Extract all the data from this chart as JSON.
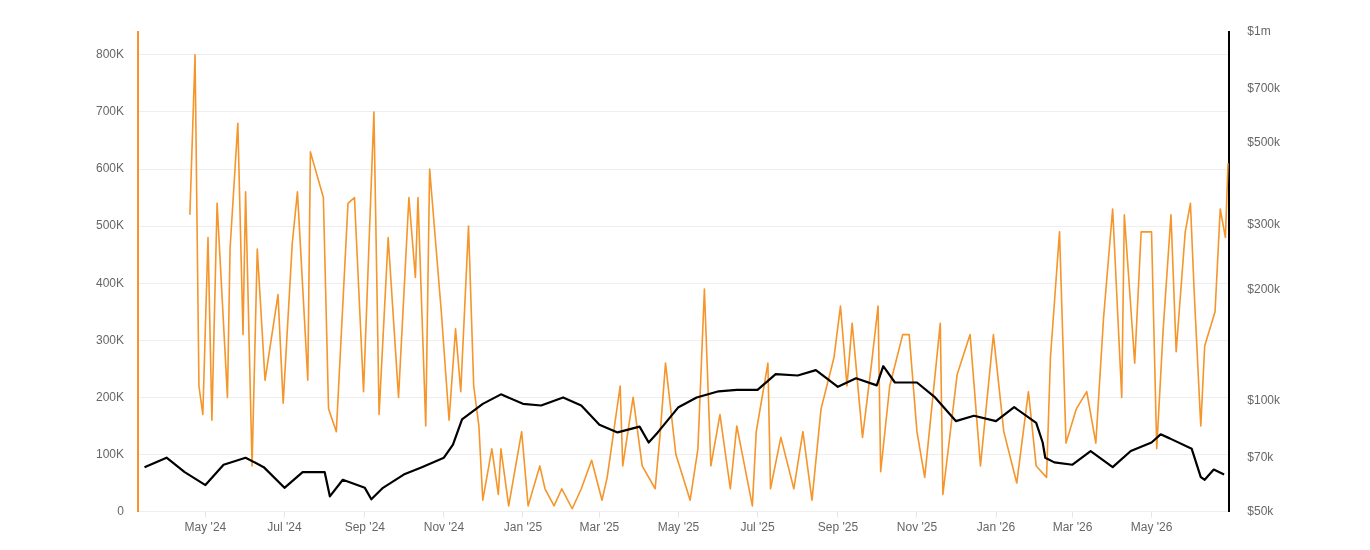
{
  "chart_data": {
    "type": "line",
    "log": "y2",
    "grid": "y",
    "marker": "none",
    "line_style": "solid",
    "xlim": [
      "2024-03-10",
      "2026-06-30"
    ],
    "xticks": [
      {
        "value": "2024-05-01",
        "label": "May '24"
      },
      {
        "value": "2024-07-01",
        "label": "Jul '24"
      },
      {
        "value": "2024-09-01",
        "label": "Sep '24"
      },
      {
        "value": "2024-11-01",
        "label": "Nov '24"
      },
      {
        "value": "2025-01-01",
        "label": "Jan '25"
      },
      {
        "value": "2025-03-01",
        "label": "Mar '25"
      },
      {
        "value": "2025-05-01",
        "label": "May '25"
      },
      {
        "value": "2025-07-01",
        "label": "Jul '25"
      },
      {
        "value": "2025-09-01",
        "label": "Sep '25"
      },
      {
        "value": "2025-11-01",
        "label": "Nov '25"
      },
      {
        "value": "2026-01-01",
        "label": "Jan '26"
      },
      {
        "value": "2026-03-01",
        "label": "Mar '26"
      },
      {
        "value": "2026-05-01",
        "label": "May '26"
      }
    ],
    "ylim": [
      0,
      840000
    ],
    "yticks": [
      0,
      {
        "value": 100000,
        "label": "100K"
      },
      {
        "value": 200000,
        "label": "200K"
      },
      {
        "value": 300000,
        "label": "300K"
      },
      {
        "value": 400000,
        "label": "400K"
      },
      {
        "value": 500000,
        "label": "500K"
      },
      {
        "value": 600000,
        "label": "600K"
      },
      {
        "value": 700000,
        "label": "700K"
      },
      {
        "value": 800000,
        "label": "800K"
      }
    ],
    "y2lim": [
      50000,
      1000000
    ],
    "y2ticks": [
      {
        "value": 50000,
        "label": "$50k"
      },
      {
        "value": 70000,
        "label": "$70k"
      },
      {
        "value": 100000,
        "label": "$100k"
      },
      {
        "value": 200000,
        "label": "$200k"
      },
      {
        "value": 300000,
        "label": "$300k"
      },
      {
        "value": 500000,
        "label": "$500k"
      },
      {
        "value": 700000,
        "label": "$700k"
      },
      {
        "value": 1000000,
        "label": "$1m"
      }
    ],
    "series": [
      {
        "color": "#f5952a",
        "axis": "y",
        "x": [
          "2024-04-19",
          "2024-04-23",
          "2024-04-26",
          "2024-04-29",
          "2024-05-03",
          "2024-05-06",
          "2024-05-10",
          "2024-05-18",
          "2024-05-20",
          "2024-05-26",
          "2024-05-30",
          "2024-06-01",
          "2024-06-06",
          "2024-06-10",
          "2024-06-16",
          "2024-06-26",
          "2024-06-30",
          "2024-07-07",
          "2024-07-11",
          "2024-07-19",
          "2024-07-21",
          "2024-07-31",
          "2024-08-04",
          "2024-08-10",
          "2024-08-19",
          "2024-08-24",
          "2024-08-31",
          "2024-09-08",
          "2024-09-12",
          "2024-09-19",
          "2024-09-27",
          "2024-10-05",
          "2024-10-10",
          "2024-10-12",
          "2024-10-18",
          "2024-10-21",
          "2024-10-30",
          "2024-11-05",
          "2024-11-10",
          "2024-11-14",
          "2024-11-20",
          "2024-11-24",
          "2024-11-28",
          "2024-12-01",
          "2024-12-08",
          "2024-12-13",
          "2024-12-15",
          "2024-12-21",
          "2024-12-31",
          "2025-01-05",
          "2025-01-14",
          "2025-01-18",
          "2025-01-25",
          "2025-01-31",
          "2025-02-08",
          "2025-02-15",
          "2025-02-23",
          "2025-03-03",
          "2025-03-07",
          "2025-03-17",
          "2025-03-19",
          "2025-03-27",
          "2025-04-03",
          "2025-04-13",
          "2025-04-17",
          "2025-04-21",
          "2025-04-29",
          "2025-05-10",
          "2025-05-16",
          "2025-05-21",
          "2025-05-26",
          "2025-06-02",
          "2025-06-10",
          "2025-06-15",
          "2025-06-27",
          "2025-06-30",
          "2025-07-09",
          "2025-07-11",
          "2025-07-19",
          "2025-07-29",
          "2025-08-05",
          "2025-08-12",
          "2025-08-19",
          "2025-08-29",
          "2025-09-03",
          "2025-09-08",
          "2025-09-12",
          "2025-09-20",
          "2025-09-27",
          "2025-10-02",
          "2025-10-04",
          "2025-10-11",
          "2025-10-21",
          "2025-10-26",
          "2025-11-01",
          "2025-11-07",
          "2025-11-19",
          "2025-11-21",
          "2025-12-02",
          "2025-12-12",
          "2025-12-20",
          "2025-12-30",
          "2026-01-07",
          "2026-01-17",
          "2026-01-26",
          "2026-02-01",
          "2026-02-09",
          "2026-02-12",
          "2026-02-19",
          "2026-02-24",
          "2026-03-04",
          "2026-03-12",
          "2026-03-19",
          "2026-03-25",
          "2026-04-01",
          "2026-04-08",
          "2026-04-10",
          "2026-04-18",
          "2026-04-23",
          "2026-05-01",
          "2026-05-05",
          "2026-05-10",
          "2026-05-16",
          "2026-05-20",
          "2026-05-27",
          "2026-05-31",
          "2026-06-03",
          "2026-06-08",
          "2026-06-11",
          "2026-06-19",
          "2026-06-23",
          "2026-06-27",
          "2026-06-29"
        ],
        "values": [
          520000,
          800000,
          220000,
          170000,
          480000,
          160000,
          540000,
          200000,
          460000,
          680000,
          310000,
          560000,
          80000,
          460000,
          230000,
          380000,
          190000,
          470000,
          560000,
          230000,
          630000,
          550000,
          180000,
          140000,
          540000,
          550000,
          210000,
          700000,
          170000,
          480000,
          200000,
          550000,
          410000,
          550000,
          150000,
          600000,
          350000,
          160000,
          320000,
          210000,
          500000,
          220000,
          150000,
          20000,
          110000,
          30000,
          110000,
          10000,
          140000,
          10000,
          80000,
          40000,
          10000,
          40000,
          5000,
          40000,
          90000,
          20000,
          60000,
          220000,
          80000,
          200000,
          80000,
          40000,
          140000,
          260000,
          100000,
          20000,
          110000,
          390000,
          80000,
          170000,
          40000,
          150000,
          10000,
          140000,
          260000,
          40000,
          130000,
          40000,
          140000,
          20000,
          180000,
          270000,
          360000,
          220000,
          330000,
          130000,
          260000,
          360000,
          70000,
          220000,
          310000,
          310000,
          140000,
          60000,
          330000,
          30000,
          240000,
          310000,
          80000,
          310000,
          140000,
          50000,
          210000,
          80000,
          60000,
          270000,
          490000,
          120000,
          180000,
          210000,
          120000,
          340000,
          530000,
          200000,
          520000,
          260000,
          490000,
          490000,
          110000,
          320000,
          520000,
          280000,
          490000,
          540000,
          380000,
          150000,
          290000,
          350000,
          530000,
          480000,
          610000
        ]
      },
      {
        "color": "#000000",
        "axis": "y2",
        "x": [
          "2024-03-15",
          "2024-04-01",
          "2024-04-15",
          "2024-05-01",
          "2024-05-15",
          "2024-06-01",
          "2024-06-15",
          "2024-07-01",
          "2024-07-15",
          "2024-08-01",
          "2024-08-05",
          "2024-08-15",
          "2024-09-01",
          "2024-09-06",
          "2024-09-15",
          "2024-10-01",
          "2024-10-15",
          "2024-11-01",
          "2024-11-08",
          "2024-11-15",
          "2024-12-01",
          "2024-12-15",
          "2025-01-01",
          "2025-01-15",
          "2025-02-01",
          "2025-02-15",
          "2025-03-01",
          "2025-03-15",
          "2025-04-01",
          "2025-04-08",
          "2025-04-15",
          "2025-05-01",
          "2025-05-15",
          "2025-06-01",
          "2025-06-15",
          "2025-07-01",
          "2025-07-15",
          "2025-08-01",
          "2025-08-15",
          "2025-09-01",
          "2025-09-15",
          "2025-10-01",
          "2025-10-06",
          "2025-10-15",
          "2025-11-01",
          "2025-11-15",
          "2025-12-01",
          "2025-12-15",
          "2026-01-01",
          "2026-01-15",
          "2026-02-01",
          "2026-02-06",
          "2026-02-08",
          "2026-02-15",
          "2026-03-01",
          "2026-03-15",
          "2026-04-01",
          "2026-04-15",
          "2026-05-01",
          "2026-05-08",
          "2026-05-15",
          "2026-06-01",
          "2026-06-08",
          "2026-06-11",
          "2026-06-18",
          "2026-06-26"
        ],
        "values": [
          66000,
          70000,
          64000,
          59000,
          67000,
          70000,
          66000,
          58000,
          64000,
          64000,
          55000,
          61000,
          58000,
          54000,
          58000,
          63000,
          66000,
          70000,
          76000,
          89000,
          98000,
          104000,
          98000,
          97000,
          102000,
          97000,
          86000,
          82000,
          85000,
          77000,
          82000,
          96000,
          102000,
          106000,
          107000,
          107000,
          118000,
          117000,
          121000,
          109000,
          115000,
          110000,
          124000,
          112000,
          112000,
          102000,
          88000,
          91000,
          88000,
          96000,
          87000,
          77000,
          70000,
          68000,
          67000,
          73000,
          66000,
          73000,
          77000,
          81000,
          79000,
          74000,
          62000,
          61000,
          65000,
          63000
        ]
      }
    ]
  }
}
